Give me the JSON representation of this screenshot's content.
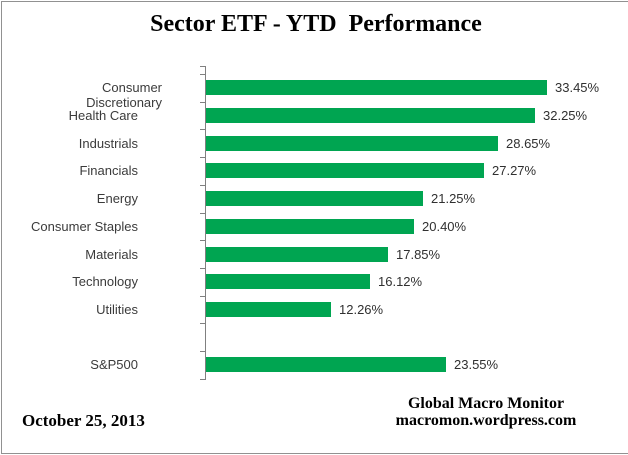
{
  "title": "Sector ETF - YTD  Performance",
  "footer": {
    "date": "October 25, 2013",
    "attribution_line1": "Global Macro Monitor",
    "attribution_line2": "macromon.wordpress.com"
  },
  "colors": {
    "bar": "#00a551",
    "axis": "#808080",
    "border": "#919191",
    "label_text": "#3b3b3b"
  },
  "chart_data": {
    "type": "bar",
    "orientation": "horizontal",
    "title": "Sector ETF - YTD  Performance",
    "xlabel": "",
    "ylabel": "",
    "xlim": [
      0,
      35
    ],
    "gridlines": false,
    "legend": false,
    "value_suffix": "%",
    "items": [
      {
        "label": "Consumer Discretionary",
        "value": 33.45,
        "display": "33.45%"
      },
      {
        "label": "Health Care",
        "value": 32.25,
        "display": "32.25%"
      },
      {
        "label": "Industrials",
        "value": 28.65,
        "display": "28.65%"
      },
      {
        "label": "Financials",
        "value": 27.27,
        "display": "27.27%"
      },
      {
        "label": "Energy",
        "value": 21.25,
        "display": "21.25%"
      },
      {
        "label": "Consumer Staples",
        "value": 20.4,
        "display": "20.40%"
      },
      {
        "label": "Materials",
        "value": 17.85,
        "display": "17.85%"
      },
      {
        "label": "Technology",
        "value": 16.12,
        "display": "16.12%"
      },
      {
        "label": "Utilities",
        "value": 12.26,
        "display": "12.26%"
      },
      {
        "label": "",
        "value": null,
        "display": ""
      },
      {
        "label": "S&P500",
        "value": 23.55,
        "display": "23.55%"
      }
    ]
  }
}
